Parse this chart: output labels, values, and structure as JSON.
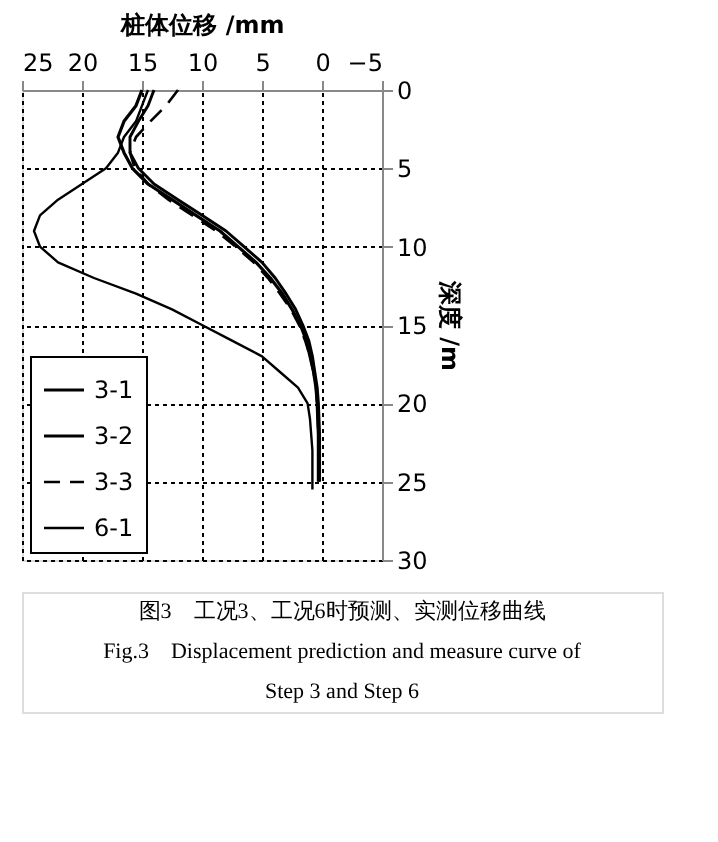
{
  "chart_data": {
    "type": "line",
    "xlabel": "桩体位移 /mm",
    "ylabel": "深度 /m",
    "xlim": [
      25,
      -5
    ],
    "xticks": [
      25,
      20,
      15,
      10,
      5,
      0,
      -5
    ],
    "ylim": [
      30,
      0
    ],
    "yticks": [
      0,
      5,
      10,
      15,
      20,
      25,
      30
    ],
    "grid": true,
    "legend": "bottom left",
    "marker": "none",
    "series": [
      {
        "name": "3-1",
        "color": "#000000",
        "line_style": "solid",
        "x": [
          15,
          15.5,
          16.5,
          17,
          16.5,
          15.8,
          14.5,
          12.5,
          10.5,
          8.5,
          7,
          5.5,
          4.3,
          3.3,
          2.5,
          1.8,
          1.3,
          1,
          0.7,
          0.5,
          0.4,
          0.3,
          0.3
        ],
        "values": [
          0,
          1,
          2,
          3,
          4,
          5,
          6,
          7,
          8,
          9,
          10,
          11,
          12,
          13,
          14,
          15,
          16,
          17,
          18,
          19,
          20,
          22,
          25
        ]
      },
      {
        "name": "3-2",
        "color": "#000000",
        "line_style": "solid",
        "x": [
          14,
          14.5,
          15.3,
          16,
          16,
          15.3,
          14,
          12,
          10,
          8,
          6.5,
          5,
          3.9,
          3,
          2.2,
          1.6,
          1.1,
          0.8,
          0.6,
          0.4,
          0.3,
          0.2,
          0.2
        ],
        "values": [
          0,
          1,
          2,
          3,
          4,
          5,
          6,
          7,
          8,
          9,
          10,
          11,
          12,
          13,
          14,
          15,
          16,
          17,
          18,
          19,
          20,
          22,
          25
        ]
      },
      {
        "name": "3-3",
        "color": "#000000",
        "line_style": "dashed",
        "x": [
          12,
          13,
          14.3,
          15.5,
          16,
          15.6,
          14.5,
          12.8,
          10.8,
          8.8,
          7.2,
          5.7,
          4.5,
          3.5,
          2.6,
          1.9,
          1.4,
          1,
          0.7,
          0.5,
          0.4,
          0.3,
          0.3
        ],
        "values": [
          0,
          1,
          2,
          3,
          4,
          5,
          6,
          7,
          8,
          9,
          10,
          11,
          12,
          13,
          14,
          15,
          16,
          17,
          18,
          19,
          20,
          22,
          25
        ]
      },
      {
        "name": "6-1",
        "color": "#000000",
        "line_style": "solid",
        "x": [
          14.5,
          15,
          15.5,
          16.5,
          17,
          18,
          20,
          22,
          23.5,
          24,
          23.5,
          22,
          19,
          15.5,
          12.5,
          10,
          7.5,
          5,
          3.5,
          2,
          1.2,
          1,
          0.9,
          0.8,
          0.8,
          0.8
        ],
        "values": [
          0,
          1,
          2,
          3,
          4,
          5,
          6,
          7,
          8,
          9,
          10,
          11,
          12,
          13,
          14,
          15,
          16,
          17,
          18,
          19,
          20,
          21,
          22,
          23,
          24,
          25.5
        ]
      }
    ],
    "annotations": [
      "图3　工况3、工况6时预测、实测位移曲线",
      "Fig.3　Displacement prediction and measure curve of",
      "Step 3 and Step 6"
    ]
  }
}
